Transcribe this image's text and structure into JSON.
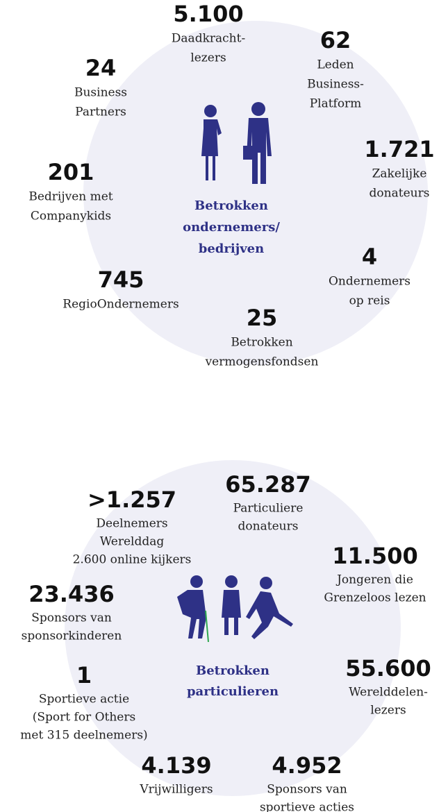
{
  "groups": [
    {
      "title": [
        "Betrokken",
        "ondernemers/",
        "bedrijven"
      ],
      "items": [
        {
          "value": "5.100",
          "lines": [
            "Daadkracht-",
            "lezers"
          ]
        },
        {
          "value": "62",
          "lines": [
            "Leden",
            "Business-",
            "Platform"
          ]
        },
        {
          "value": "24",
          "lines": [
            "Business",
            "Partners"
          ]
        },
        {
          "value": "1.721",
          "lines": [
            "Zakelijke",
            "donateurs"
          ]
        },
        {
          "value": "201",
          "lines": [
            "Bedrijven met",
            "Companykids"
          ]
        },
        {
          "value": "4",
          "lines": [
            "Ondernemers",
            "op reis"
          ]
        },
        {
          "value": "745",
          "lines": [
            "RegioOndernemers"
          ]
        },
        {
          "value": "25",
          "lines": [
            "Betrokken",
            "vermogensfondsen"
          ]
        }
      ]
    },
    {
      "title": [
        "Betrokken",
        "particulieren"
      ],
      "items": [
        {
          "value": ">1.257",
          "lines": [
            "Deelnemers",
            "Werelddag",
            "2.600 online kijkers"
          ]
        },
        {
          "value": "65.287",
          "lines": [
            "Particuliere",
            "donateurs"
          ]
        },
        {
          "value": "11.500",
          "lines": [
            "Jongeren die",
            "Grenzeloos lezen"
          ]
        },
        {
          "value": "23.436",
          "lines": [
            "Sponsors van",
            "sponsorkinderen"
          ]
        },
        {
          "value": "1",
          "lines": [
            "Sportieve actie",
            "(Sport for Others",
            "met 315 deelnemers)"
          ]
        },
        {
          "value": "55.600",
          "lines": [
            "Werelddelen-",
            "lezers"
          ]
        },
        {
          "value": "4.139",
          "lines": [
            "Vrijwilligers"
          ]
        },
        {
          "value": "4.952",
          "lines": [
            "Sponsors van",
            "sportieve acties"
          ]
        }
      ]
    }
  ]
}
